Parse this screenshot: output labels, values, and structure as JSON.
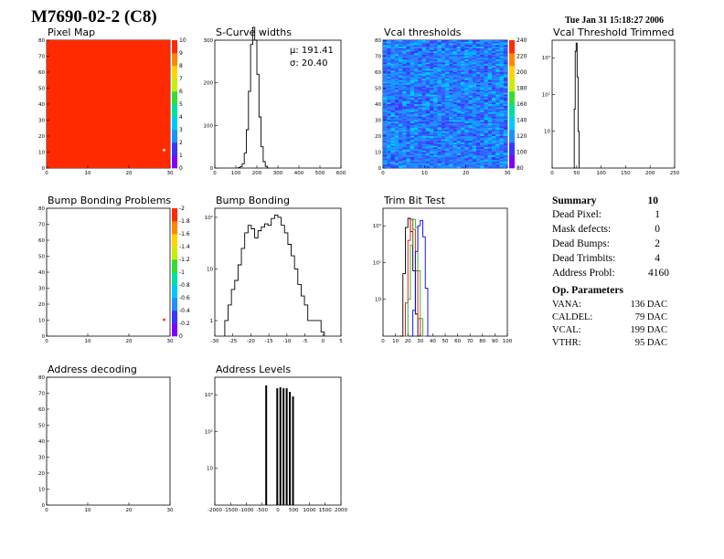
{
  "header": {
    "title": "M7690-02-2 (C8)",
    "date": "Tue Jan 31 15:18:27 2006"
  },
  "summary": {
    "title": "Summary",
    "count": "10",
    "rows": [
      {
        "label": "Dead Pixel:",
        "value": "1"
      },
      {
        "label": "Mask defects:",
        "value": "0"
      },
      {
        "label": "Dead Bumps:",
        "value": "2"
      },
      {
        "label": "Dead Trimbits:",
        "value": "4"
      },
      {
        "label": "Address Probl:",
        "value": "4160"
      }
    ]
  },
  "op_parameters": {
    "title": "Op. Parameters",
    "rows": [
      {
        "label": "VANA:",
        "value": "136 DAC"
      },
      {
        "label": "CALDEL:",
        "value": "79 DAC"
      },
      {
        "label": "VCAL:",
        "value": "199 DAC"
      },
      {
        "label": "VTHR:",
        "value": "95 DAC"
      }
    ]
  },
  "chart_data": [
    {
      "id": "pixel-map",
      "type": "heatmap",
      "title": "Pixel Map",
      "xlim": [
        0,
        32
      ],
      "ylim": [
        0,
        80
      ],
      "xticks": [
        "0",
        "10",
        "20",
        "30"
      ],
      "yticks": [
        "0",
        "10",
        "20",
        "30",
        "40",
        "50",
        "60",
        "70",
        "80"
      ],
      "fill": "uniform",
      "fill_value": 10,
      "highlight_cells": [
        {
          "x": 33,
          "y": 12,
          "value": 0
        }
      ],
      "palette": [
        "#7f00ff",
        "#3a36ff",
        "#1e90ff",
        "#00c8ff",
        "#00e0a0",
        "#33dd33",
        "#c8ee00",
        "#ffd400",
        "#ff8800",
        "#ff2a00"
      ],
      "palette_ticks": [
        "0",
        "1",
        "2",
        "3",
        "4",
        "5",
        "6",
        "7",
        "8",
        "9",
        "10"
      ]
    },
    {
      "id": "s-curve-widths",
      "type": "line",
      "title": "S-Curve widths",
      "xlim": [
        0,
        600
      ],
      "ylim": [
        0,
        300
      ],
      "xticks": [
        "0",
        "100",
        "200",
        "300",
        "400",
        "500",
        "600"
      ],
      "yticks": [
        "0",
        "100",
        "200",
        "300"
      ],
      "stats": [
        "μ: 191.41",
        "σ: 20.40"
      ],
      "series": [
        {
          "color": "#000000",
          "x": [
            110,
            120,
            130,
            140,
            150,
            160,
            170,
            180,
            190,
            200,
            210,
            220,
            230,
            240,
            250
          ],
          "values": [
            1,
            3,
            10,
            35,
            90,
            180,
            290,
            330,
            300,
            220,
            120,
            50,
            15,
            4,
            0
          ]
        }
      ]
    },
    {
      "id": "vcal-thresholds",
      "type": "heatmap",
      "title": "Vcal thresholds",
      "xlim": [
        0,
        32
      ],
      "ylim": [
        0,
        80
      ],
      "xticks": [
        "0",
        "10",
        "20",
        "30"
      ],
      "yticks": [
        "0",
        "10",
        "20",
        "30",
        "40",
        "50",
        "60",
        "70",
        "80"
      ],
      "fill": "noise",
      "palette": [
        "#7f00ff",
        "#3a36ff",
        "#1e90ff",
        "#00c8ff",
        "#00e0a0",
        "#33dd33",
        "#c8ee00",
        "#ffd400",
        "#ff8800",
        "#ff2a00"
      ],
      "palette_ticks": [
        "80",
        "100",
        "120",
        "140",
        "160",
        "180",
        "200",
        "220",
        "240"
      ]
    },
    {
      "id": "vcal-threshold-trimmed",
      "type": "line",
      "title": "Vcal Threshold Trimmed",
      "xlim": [
        0,
        255
      ],
      "log_y": true,
      "ylim": [
        1,
        3000
      ],
      "xticks": [
        "0",
        "50",
        "100",
        "150",
        "200",
        "250"
      ],
      "yticks": [
        "10",
        "10²",
        "10³"
      ],
      "series": [
        {
          "color": "#000000",
          "x": [
            44,
            46,
            48,
            50,
            52,
            54,
            56
          ],
          "values": [
            1,
            40,
            1500,
            2500,
            300,
            10,
            1
          ]
        }
      ]
    },
    {
      "id": "bump-bonding-problems",
      "type": "heatmap",
      "title": "Bump Bonding Problems",
      "xlim": [
        0,
        32
      ],
      "ylim": [
        0,
        80
      ],
      "xticks": [
        "0",
        "10",
        "20",
        "30"
      ],
      "yticks": [
        "0",
        "10",
        "20",
        "30",
        "40",
        "50",
        "60",
        "70",
        "80"
      ],
      "fill": "empty",
      "highlight_cells": [
        {
          "x": 33,
          "y": 11,
          "value": 0
        }
      ],
      "palette": [
        "#7f00ff",
        "#3a36ff",
        "#1e90ff",
        "#00c8ff",
        "#00e0a0",
        "#33dd33",
        "#c8ee00",
        "#ffd400",
        "#ff8800",
        "#ff2a00"
      ],
      "palette_ticks": [
        "-2",
        "-1.8",
        "-1.6",
        "-1.4",
        "-1.2",
        "-1",
        "-0.8",
        "-0.6",
        "-0.4",
        "-0.2",
        "0"
      ]
    },
    {
      "id": "bump-bonding",
      "type": "line",
      "title": "Bump Bonding",
      "xlim": [
        -33,
        5
      ],
      "log_y": true,
      "ylim": [
        0.5,
        150
      ],
      "xticks": [
        "-30",
        "-25",
        "-20",
        "-15",
        "-10",
        "-5",
        "0",
        "5"
      ],
      "yticks": [
        "1",
        "10",
        "10²"
      ],
      "series": [
        {
          "color": "#000000",
          "x": [
            -30,
            -29,
            -28,
            -27,
            -26,
            -25,
            -24,
            -23,
            -22,
            -21,
            -20,
            -19,
            -18,
            -17,
            -16,
            -15,
            -14,
            -13,
            -12,
            -11,
            -10,
            -9,
            -8,
            -7,
            -6,
            -5,
            -4,
            -3,
            -2,
            -1
          ],
          "values": [
            1,
            2,
            4,
            6,
            12,
            25,
            50,
            70,
            60,
            40,
            55,
            65,
            75,
            70,
            95,
            110,
            100,
            70,
            50,
            30,
            18,
            10,
            5,
            3,
            2,
            1,
            1,
            1,
            1,
            0.6
          ]
        }
      ]
    },
    {
      "id": "trim-bit-test",
      "type": "line",
      "title": "Trim Bit Test",
      "xlim": [
        0,
        100
      ],
      "log_y": true,
      "ylim": [
        1,
        3000
      ],
      "xticks": [
        "0",
        "10",
        "20",
        "30",
        "40",
        "50",
        "60",
        "70",
        "80",
        "90",
        "100"
      ],
      "yticks": [
        "10",
        "10²",
        "10³"
      ],
      "series": [
        {
          "color": "#000000",
          "x": [
            14,
            16,
            18,
            20,
            22,
            24,
            26,
            28
          ],
          "values": [
            1,
            50,
            900,
            1600,
            700,
            60,
            4,
            1
          ]
        },
        {
          "color": "#ff0000",
          "x": [
            16,
            18,
            20,
            22,
            24,
            26,
            28,
            30
          ],
          "values": [
            1,
            8,
            400,
            1500,
            800,
            60,
            3,
            1
          ]
        },
        {
          "color": "#22aa22",
          "x": [
            18,
            20,
            22,
            24,
            26,
            28,
            30,
            32
          ],
          "values": [
            1,
            10,
            300,
            1500,
            900,
            60,
            3,
            1
          ]
        },
        {
          "color": "#0000ff",
          "x": [
            22,
            24,
            26,
            28,
            30,
            32,
            34,
            36
          ],
          "values": [
            1,
            5,
            200,
            1000,
            1400,
            500,
            20,
            1
          ]
        }
      ]
    },
    {
      "id": "address-decoding",
      "type": "heatmap",
      "title": "Address decoding",
      "xlim": [
        0,
        32
      ],
      "ylim": [
        0,
        80
      ],
      "xticks": [
        "0",
        "10",
        "20",
        "30"
      ],
      "yticks": [
        "0",
        "10",
        "20",
        "30",
        "40",
        "50",
        "60",
        "70",
        "80"
      ],
      "fill": "empty"
    },
    {
      "id": "address-levels",
      "type": "bar",
      "title": "Address Levels",
      "xlim": [
        -2000,
        2000
      ],
      "log_y": true,
      "ylim": [
        1,
        3000
      ],
      "xticks": [
        "-2000",
        "-1500",
        "-1000",
        "-500",
        "0",
        "500",
        "1000",
        "1500",
        "2000"
      ],
      "yticks": [
        "10",
        "10²",
        "10³"
      ],
      "series": [
        {
          "color": "#000000",
          "x": [
            -400,
            -50,
            50,
            150,
            250,
            350,
            450
          ],
          "values": [
            1800,
            1500,
            1600,
            1500,
            1500,
            1200,
            900
          ]
        }
      ]
    }
  ]
}
